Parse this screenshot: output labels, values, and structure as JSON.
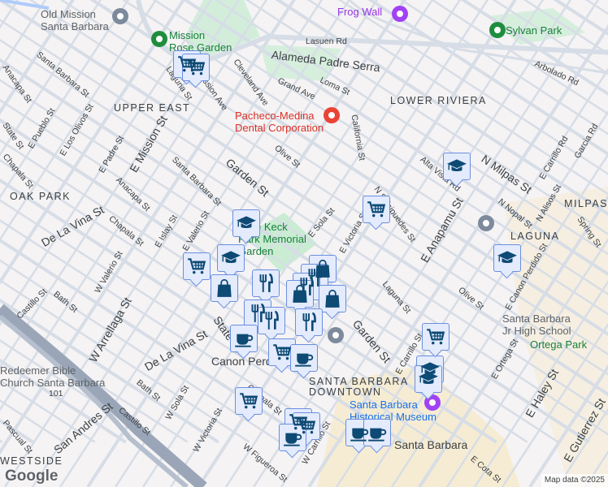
{
  "map": {
    "attribution": "Map data ©2025",
    "logo": "Google",
    "colors": {
      "background": "#f5f3f4",
      "road": "#d7dde6",
      "highway": "#9aa6b8",
      "park": "#c9ecd3",
      "downtown": "#f6ecd3",
      "marker_fill": "#e3ebfd",
      "marker_border": "#6b8fe0",
      "marker_icon": "#0d4a74"
    },
    "labels": [
      {
        "text": "Old Mission\nSanta Barbara",
        "kind": "poi-gray"
      },
      {
        "text": "Mission\nRose Garden",
        "kind": "poi-green"
      },
      {
        "text": "Frog Wall",
        "kind": "poi-purple"
      },
      {
        "text": "Sylvan Park",
        "kind": "poi-green"
      },
      {
        "text": "Lasuen Rd",
        "kind": "street"
      },
      {
        "text": "Alameda Padre Serra",
        "kind": "big"
      },
      {
        "text": "Arbolado Rd",
        "kind": "street"
      },
      {
        "text": "Loma St",
        "kind": "street"
      },
      {
        "text": "Grand Ave",
        "kind": "street"
      },
      {
        "text": "Cleveland Ave",
        "kind": "street"
      },
      {
        "text": "Mission Ave",
        "kind": "street"
      },
      {
        "text": "Laguna St",
        "kind": "street"
      },
      {
        "text": "Santa Barbara St",
        "kind": "street"
      },
      {
        "text": "Anacapa St",
        "kind": "street"
      },
      {
        "text": "E Pueblo St",
        "kind": "street"
      },
      {
        "text": "E Los Olivos St",
        "kind": "street"
      },
      {
        "text": "E Padre St",
        "kind": "street"
      },
      {
        "text": "State St",
        "kind": "street"
      },
      {
        "text": "Pacheco-Medina\nDental Corporation",
        "kind": "poi-red"
      },
      {
        "text": "LOWER RIVIERA",
        "kind": "area"
      },
      {
        "text": "UPPER EAST",
        "kind": "area"
      },
      {
        "text": "California St",
        "kind": "street"
      },
      {
        "text": "Olive St",
        "kind": "street"
      },
      {
        "text": "Garden St",
        "kind": "big"
      },
      {
        "text": "E Mission St",
        "kind": "big"
      },
      {
        "text": "Santa Barbara St",
        "kind": "street"
      },
      {
        "text": "Anacapa St",
        "kind": "street"
      },
      {
        "text": "Chapala St",
        "kind": "street"
      },
      {
        "text": "OAK PARK",
        "kind": "area"
      },
      {
        "text": "De La Vina St",
        "kind": "big"
      },
      {
        "text": "E Islay St",
        "kind": "street"
      },
      {
        "text": "E Valerio St",
        "kind": "street"
      },
      {
        "text": "Alice Keck\nPark Memorial\nGarden",
        "kind": "poi-green"
      },
      {
        "text": "E Sola St",
        "kind": "street"
      },
      {
        "text": "N Salsipuedes St",
        "kind": "street"
      },
      {
        "text": "Alta Vista Rd",
        "kind": "street"
      },
      {
        "text": "N Milpas St",
        "kind": "big"
      },
      {
        "text": "E Carrillo Rd",
        "kind": "street"
      },
      {
        "text": "Garcia Rd",
        "kind": "street"
      },
      {
        "text": "MILPAS",
        "kind": "area"
      },
      {
        "text": "E Anapamu St",
        "kind": "big"
      },
      {
        "text": "E Victoria St",
        "kind": "street"
      },
      {
        "text": "N Nopal St",
        "kind": "street"
      },
      {
        "text": "N Alisos St",
        "kind": "street"
      },
      {
        "text": "E Canon Perdido St",
        "kind": "street"
      },
      {
        "text": "Spring St",
        "kind": "street"
      },
      {
        "text": "LAGUNA",
        "kind": "area"
      },
      {
        "text": "Santa Barbara\nJr High School",
        "kind": "poi-gray"
      },
      {
        "text": "Olive St",
        "kind": "street"
      },
      {
        "text": "Laguna St",
        "kind": "street"
      },
      {
        "text": "Ortega Park",
        "kind": "poi-green"
      },
      {
        "text": "Chapala St",
        "kind": "street"
      },
      {
        "text": "Bath St",
        "kind": "street"
      },
      {
        "text": "Castillo St",
        "kind": "street"
      },
      {
        "text": "W Valerio St",
        "kind": "street"
      },
      {
        "text": "De La Vina St",
        "kind": "big"
      },
      {
        "text": "W Arrellaga St",
        "kind": "big"
      },
      {
        "text": "Bath St",
        "kind": "street"
      },
      {
        "text": "Castillo St",
        "kind": "street"
      },
      {
        "text": "W Sola St",
        "kind": "street"
      },
      {
        "text": "W Victoria St",
        "kind": "street"
      },
      {
        "text": "State St",
        "kind": "big"
      },
      {
        "text": "Canon Perdido",
        "kind": "big"
      },
      {
        "text": "SANTA BARBARA\nDOWNTOWN",
        "kind": "area"
      },
      {
        "text": "Garden St",
        "kind": "big"
      },
      {
        "text": "E Carrillo St",
        "kind": "street"
      },
      {
        "text": "Santa Barbara\nHistorical Museum",
        "kind": "poi-blue"
      },
      {
        "text": "Santa Barbara",
        "kind": "big"
      },
      {
        "text": "E Ortega St",
        "kind": "street"
      },
      {
        "text": "E Haley St",
        "kind": "big"
      },
      {
        "text": "E Gutierrez St",
        "kind": "big"
      },
      {
        "text": "E Cota St",
        "kind": "street"
      },
      {
        "text": "W Figueroa St",
        "kind": "street"
      },
      {
        "text": "W Carrillo St",
        "kind": "street"
      },
      {
        "text": "Chapala St",
        "kind": "street"
      },
      {
        "text": "Redeemer Bible\nChurch Santa Barbara",
        "kind": "poi-gray"
      },
      {
        "text": "Pascual St",
        "kind": "street"
      },
      {
        "text": "WESTSIDE",
        "kind": "area"
      },
      {
        "text": "San Andres St",
        "kind": "big"
      },
      {
        "text": "101",
        "kind": "street"
      }
    ],
    "markers": [
      {
        "type": "grocery"
      },
      {
        "type": "grocery"
      },
      {
        "type": "school"
      },
      {
        "type": "grocery"
      },
      {
        "type": "school"
      },
      {
        "type": "school"
      },
      {
        "type": "grocery"
      },
      {
        "type": "school"
      },
      {
        "type": "shopping"
      },
      {
        "type": "restaurant"
      },
      {
        "type": "shopping"
      },
      {
        "type": "restaurant"
      },
      {
        "type": "restaurant"
      },
      {
        "type": "shopping"
      },
      {
        "type": "shopping"
      },
      {
        "type": "restaurant"
      },
      {
        "type": "restaurant"
      },
      {
        "type": "coffee"
      },
      {
        "type": "restaurant"
      },
      {
        "type": "grocery"
      },
      {
        "type": "coffee"
      },
      {
        "type": "school"
      },
      {
        "type": "grocery"
      },
      {
        "type": "school"
      },
      {
        "type": "grocery"
      },
      {
        "type": "grocery"
      },
      {
        "type": "grocery"
      },
      {
        "type": "coffee"
      },
      {
        "type": "coffee"
      },
      {
        "type": "coffee"
      }
    ]
  }
}
